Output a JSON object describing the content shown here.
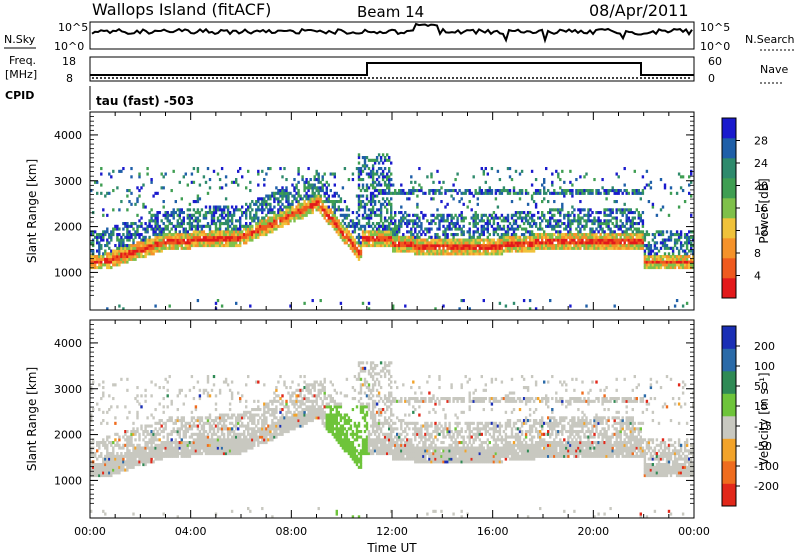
{
  "header": {
    "station": "Wallops Island (fitACF)",
    "beam": "Beam 14",
    "date": "08/Apr/2011"
  },
  "strip": {
    "nsky_label": "N.Sky",
    "nsky_ticks": [
      "10^5",
      "10^0"
    ],
    "nsearch_label": "N.Search",
    "nsearch_ticks": [
      "10^5",
      "10^0"
    ],
    "freq_label": "Freq.",
    "freq_units": "[MHz]",
    "freq_ticks": [
      "18",
      "8"
    ],
    "nave_label": "Nave",
    "nave_ticks": [
      "60",
      "0"
    ],
    "cpid_label": "CPID",
    "cpid_text": "tau (fast) -503"
  },
  "chart_data": [
    {
      "type": "heatmap",
      "name": "power-panel",
      "ylabel": "Slant Range [km]",
      "yticks": [
        "4000",
        "3000",
        "2000",
        "1000"
      ],
      "ylim": [
        180,
        4500
      ],
      "xlim": [
        0,
        24
      ],
      "colorbar_label": "Power [dB]",
      "colorbar_ticks": [
        "28",
        "24",
        "20",
        "16",
        "12",
        "8",
        "4"
      ],
      "colors": [
        "#1a1acd",
        "#1f5fa8",
        "#2e8a6c",
        "#3f9e52",
        "#7fc04a",
        "#f0c23a",
        "#f5922a",
        "#ef5a1e",
        "#e3191b"
      ]
    },
    {
      "type": "heatmap",
      "name": "velocity-panel",
      "ylabel": "Slant Range [km]",
      "yticks": [
        "4000",
        "3000",
        "2000",
        "1000"
      ],
      "ylim": [
        180,
        4500
      ],
      "xlim": [
        0,
        24
      ],
      "xlabel": "Time UT",
      "xticks": [
        "00:00",
        "04:00",
        "08:00",
        "12:00",
        "16:00",
        "20:00",
        "00:00"
      ],
      "colorbar_label": "Velocity [m s⁻¹]",
      "colorbar_ticks": [
        "200",
        "100",
        "50",
        "15",
        "-15",
        "-50",
        "-100",
        "-200"
      ],
      "colors": [
        "#1a2fb5",
        "#2a6aa8",
        "#2f8a55",
        "#6ec43a",
        "#c8c8c0",
        "#f2a32a",
        "#ef6c1e",
        "#e2281a"
      ]
    }
  ]
}
